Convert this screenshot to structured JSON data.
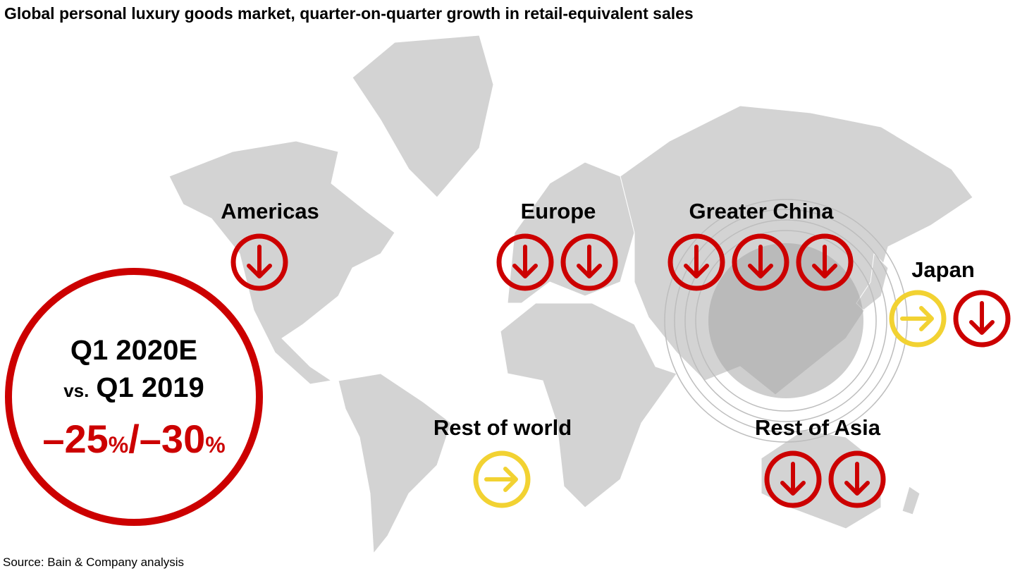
{
  "title": "Global personal luxury goods market, quarter-on-quarter growth in retail-equivalent sales",
  "headline": {
    "period": "Q1 2020E",
    "versus": "vs.",
    "baseline": "Q1 2019",
    "low": "–25",
    "low_unit": "%",
    "separator": "/",
    "high": "–30",
    "high_unit": "%"
  },
  "arrow_colors": {
    "down": "#cc0000",
    "flat": "#f2d232"
  },
  "regions": [
    {
      "name": "Americas",
      "arrows": [
        "down"
      ]
    },
    {
      "name": "Europe",
      "arrows": [
        "down",
        "down"
      ]
    },
    {
      "name": "Greater China",
      "arrows": [
        "down",
        "down",
        "down"
      ]
    },
    {
      "name": "Japan",
      "arrows": [
        "flat",
        "down"
      ]
    },
    {
      "name": "Rest of world",
      "arrows": [
        "flat"
      ]
    },
    {
      "name": "Rest of Asia",
      "arrows": [
        "down",
        "down"
      ]
    }
  ],
  "source": "Source: Bain & Company analysis"
}
